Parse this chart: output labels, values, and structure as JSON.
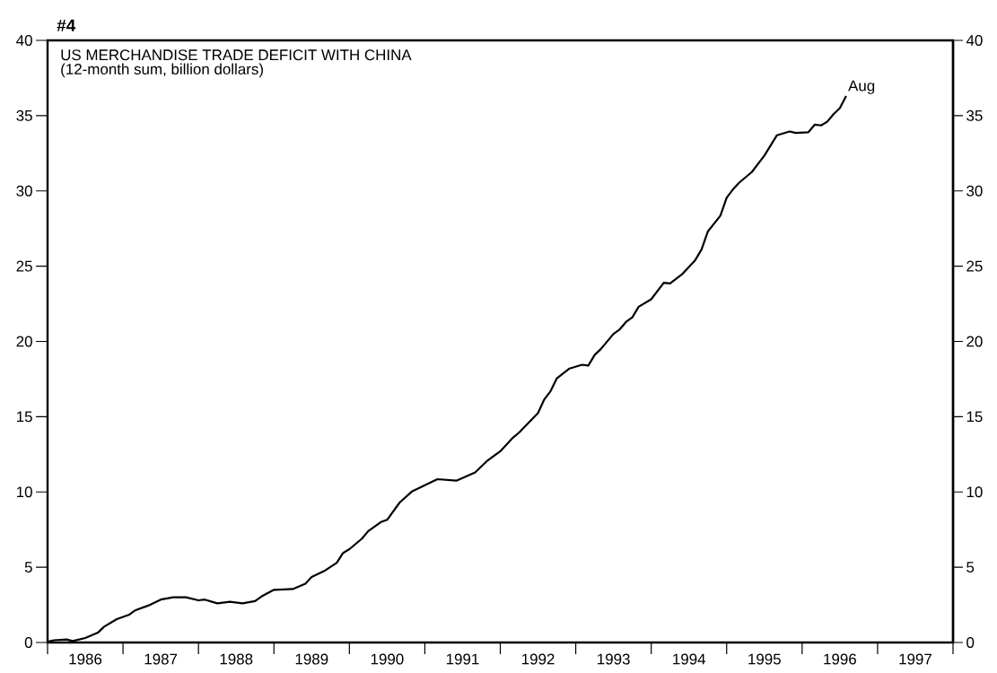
{
  "chart_data": {
    "type": "line",
    "title": "US MERCHANDISE TRADE DEFICIT WITH CHINA",
    "subtitle": "(12-month sum, billion dollars)",
    "annotations": [
      "#4",
      {
        "text": "Aug",
        "x": "1996-08",
        "y": 36.3
      }
    ],
    "x": [
      "1986-01",
      "1986-02",
      "1986-04",
      "1986-05",
      "1986-07",
      "1986-09",
      "1986-10",
      "1986-12",
      "1987-02",
      "1987-03",
      "1987-05",
      "1987-07",
      "1987-09",
      "1987-11",
      "1988-01",
      "1988-02",
      "1988-04",
      "1988-06",
      "1988-08",
      "1988-10",
      "1988-11",
      "1989-01",
      "1989-04",
      "1989-06",
      "1989-07",
      "1989-09",
      "1989-11",
      "1989-12",
      "1990-01",
      "1990-03",
      "1990-04",
      "1990-06",
      "1990-07",
      "1990-09",
      "1990-11",
      "1991-01",
      "1991-03",
      "1991-06",
      "1991-09",
      "1991-11",
      "1992-01",
      "1992-03",
      "1992-04",
      "1992-07",
      "1992-08",
      "1992-09",
      "1992-10",
      "1992-12",
      "1993-02",
      "1993-03",
      "1993-04",
      "1993-05",
      "1993-07",
      "1993-08",
      "1993-09",
      "1993-10",
      "1993-11",
      "1994-01",
      "1994-03",
      "1994-04",
      "1994-06",
      "1994-08",
      "1994-09",
      "1994-10",
      "1994-12",
      "1995-01",
      "1995-02",
      "1995-03",
      "1995-05",
      "1995-07",
      "1995-09",
      "1995-11",
      "1995-12",
      "1996-02",
      "1996-03",
      "1996-04",
      "1996-05",
      "1996-06",
      "1996-07",
      "1996-08"
    ],
    "series": [
      {
        "color": "#000000",
        "values": [
          0.05,
          0.15,
          0.2,
          0.1,
          0.3,
          0.65,
          1.05,
          1.55,
          1.85,
          2.15,
          2.45,
          2.85,
          3.0,
          3.0,
          2.8,
          2.85,
          2.6,
          2.7,
          2.6,
          2.75,
          3.05,
          3.5,
          3.55,
          3.9,
          4.35,
          4.75,
          5.3,
          5.95,
          6.2,
          6.9,
          7.4,
          8.0,
          8.15,
          9.3,
          10.05,
          10.45,
          10.85,
          10.75,
          11.3,
          12.1,
          12.7,
          13.6,
          13.95,
          15.25,
          16.15,
          16.7,
          17.55,
          18.2,
          18.45,
          18.4,
          19.1,
          19.5,
          20.5,
          20.8,
          21.3,
          21.6,
          22.3,
          22.8,
          23.9,
          23.85,
          24.5,
          25.4,
          26.1,
          27.3,
          28.35,
          29.55,
          30.1,
          30.55,
          31.25,
          32.35,
          33.7,
          33.95,
          33.85,
          33.9,
          34.4,
          34.35,
          34.6,
          35.1,
          35.5,
          36.3
        ]
      }
    ],
    "xlim": [
      "1986-01",
      "1998-01"
    ],
    "xticks": [
      {
        "value": "1986-01",
        "label": null
      },
      {
        "value": "1987-01",
        "label": null
      },
      {
        "value": "1988-01",
        "label": null
      },
      {
        "value": "1989-01",
        "label": null
      },
      {
        "value": "1990-01",
        "label": null
      },
      {
        "value": "1991-01",
        "label": null
      },
      {
        "value": "1992-01",
        "label": null
      },
      {
        "value": "1993-01",
        "label": null
      },
      {
        "value": "1994-01",
        "label": null
      },
      {
        "value": "1995-01",
        "label": null
      },
      {
        "value": "1996-01",
        "label": null
      },
      {
        "value": "1997-01",
        "label": null
      },
      {
        "value": "1998-01",
        "label": null
      },
      {
        "value": "1986-07",
        "label": "1986"
      },
      {
        "value": "1987-07",
        "label": "1987"
      },
      {
        "value": "1988-07",
        "label": "1988"
      },
      {
        "value": "1989-07",
        "label": "1989"
      },
      {
        "value": "1990-07",
        "label": "1990"
      },
      {
        "value": "1991-07",
        "label": "1991"
      },
      {
        "value": "1992-07",
        "label": "1992"
      },
      {
        "value": "1993-07",
        "label": "1993"
      },
      {
        "value": "1994-07",
        "label": "1994"
      },
      {
        "value": "1995-07",
        "label": "1995"
      },
      {
        "value": "1996-07",
        "label": "1996"
      },
      {
        "value": "1997-07",
        "label": "1997"
      }
    ],
    "ylim": [
      0,
      40
    ],
    "yticks": [
      0,
      5,
      10,
      15,
      20,
      25,
      30,
      35,
      40
    ],
    "y2lim": [
      0,
      40
    ],
    "y2ticks": [
      0,
      5,
      10,
      15,
      20,
      25,
      30,
      35,
      40
    ],
    "line_style": "solid"
  }
}
